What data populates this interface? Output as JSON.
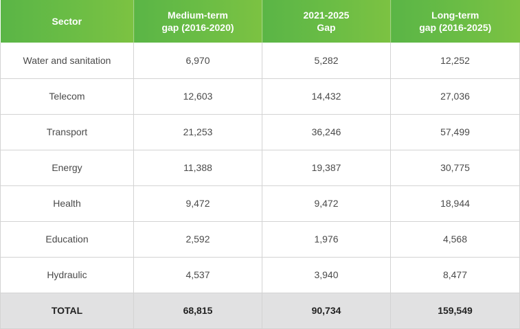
{
  "chart_data": {
    "type": "table",
    "columns": [
      {
        "lines": [
          "Sector"
        ]
      },
      {
        "lines": [
          "Medium-term",
          "gap (2016-2020)"
        ]
      },
      {
        "lines": [
          "2021-2025",
          "Gap"
        ]
      },
      {
        "lines": [
          "Long-term",
          "gap (2016-2025)"
        ]
      }
    ],
    "rows": [
      {
        "sector": "Water and sanitation",
        "values": [
          "6,970",
          "5,282",
          "12,252"
        ]
      },
      {
        "sector": "Telecom",
        "values": [
          "12,603",
          "14,432",
          "27,036"
        ]
      },
      {
        "sector": "Transport",
        "values": [
          "21,253",
          "36,246",
          "57,499"
        ]
      },
      {
        "sector": "Energy",
        "values": [
          "11,388",
          "19,387",
          "30,775"
        ]
      },
      {
        "sector": "Health",
        "values": [
          "9,472",
          "9,472",
          "18,944"
        ]
      },
      {
        "sector": "Education",
        "values": [
          "2,592",
          "1,976",
          "4,568"
        ]
      },
      {
        "sector": "Hydraulic",
        "values": [
          "4,537",
          "3,940",
          "8,477"
        ]
      }
    ],
    "total": {
      "sector": "TOTAL",
      "values": [
        "68,815",
        "90,734",
        "159,549"
      ]
    }
  },
  "colors": {
    "header_green": "#6bbd45",
    "total_row_gray": "#e1e1e2",
    "grid_line": "#d3d3d3"
  }
}
